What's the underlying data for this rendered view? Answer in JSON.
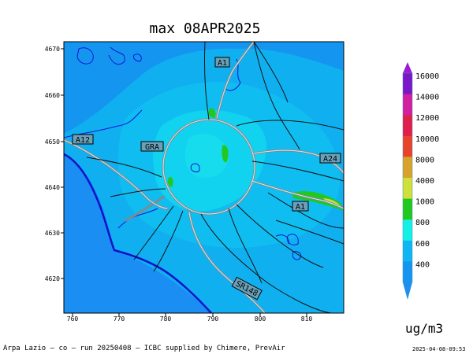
{
  "title": "max 08APR2025",
  "unit": "ug/m3",
  "footer": "Arpa Lazio — co — run 20250408 — ICBC supplied by Chimere, PrevAir",
  "timestamp": "2025-04-08-09:53",
  "map": {
    "x_ticks": [
      "760",
      "770",
      "780",
      "790",
      "800",
      "810"
    ],
    "y_ticks": [
      "4670",
      "4660",
      "4650",
      "4640",
      "4630",
      "4620"
    ],
    "road_labels": [
      "A1",
      "A12",
      "GRA",
      "A24",
      "A1",
      "SR148"
    ]
  },
  "legend": {
    "levels": [
      "16000",
      "14000",
      "12000",
      "10000",
      "8000",
      "4000",
      "1000",
      "800",
      "600",
      "400"
    ],
    "colors": [
      "#7a17c8",
      "#d21fa0",
      "#e0204a",
      "#e8442c",
      "#d9a22a",
      "#cfe03a",
      "#22c81e",
      "#13f0e6",
      "#10b6f2",
      "#1496f0"
    ],
    "top_color": "#9a1cd6",
    "bottom_color": "#1e8ef0"
  },
  "colors": {
    "sea": "#1a94f4",
    "land": "#0fb2f0",
    "border": "#1212d8",
    "road": "#7a8c94"
  }
}
